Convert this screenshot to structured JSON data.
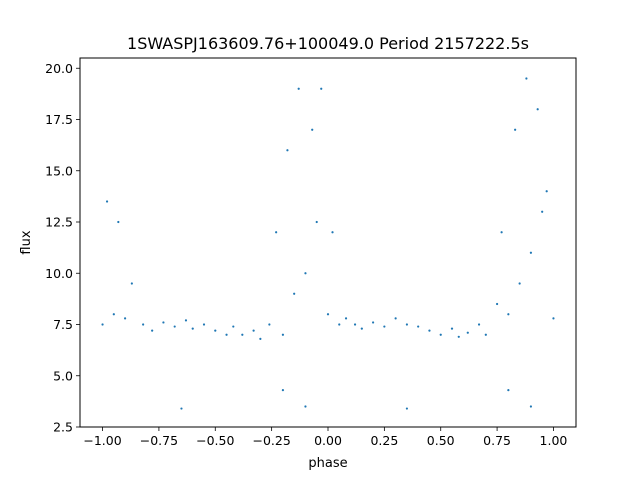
{
  "chart_data": {
    "type": "scatter",
    "title": "1SWASPJ163609.76+100049.0 Period 2157222.5s",
    "xlabel": "phase",
    "ylabel": "flux",
    "xlim": [
      -1.1,
      1.1
    ],
    "ylim": [
      2.5,
      20.5
    ],
    "xticks": [
      -1.0,
      -0.75,
      -0.5,
      -0.25,
      0.0,
      0.25,
      0.5,
      0.75,
      1.0
    ],
    "xtick_labels": [
      "−1.00",
      "−0.75",
      "−0.50",
      "−0.25",
      "0.00",
      "0.25",
      "0.50",
      "0.75",
      "1.00"
    ],
    "yticks": [
      2.5,
      5.0,
      7.5,
      10.0,
      12.5,
      15.0,
      17.5,
      20.0
    ],
    "ytick_labels": [
      "2.5",
      "5.0",
      "7.5",
      "10.0",
      "12.5",
      "15.0",
      "17.5",
      "20.0"
    ],
    "grid": false,
    "marker_color": "#1f77b4",
    "series": [
      {
        "x": [
          -1.0,
          -0.98,
          -0.95,
          -0.93,
          -0.9,
          -0.87,
          -0.82,
          -0.78,
          -0.73,
          -0.68,
          -0.63,
          -0.6,
          -0.55,
          -0.5,
          -0.45,
          -0.42,
          -0.38,
          -0.33,
          -0.3,
          -0.26,
          -0.23,
          -0.2,
          -0.18,
          -0.15,
          -0.13,
          -0.1,
          -0.07,
          -0.05,
          -0.03,
          0.0,
          0.02,
          0.05,
          0.08,
          0.12,
          0.15,
          0.2,
          0.25,
          0.3,
          0.35,
          0.4,
          0.45,
          0.5,
          0.55,
          0.58,
          0.62,
          0.67,
          0.7,
          0.75,
          0.77,
          0.8,
          0.83,
          0.85,
          0.88,
          0.9,
          0.93,
          0.95,
          0.97,
          1.0,
          -0.65,
          0.35,
          -0.1,
          0.9,
          -0.2,
          0.8
        ],
        "y": [
          7.5,
          13.5,
          8.0,
          12.5,
          7.8,
          9.5,
          7.5,
          7.2,
          7.6,
          7.4,
          7.7,
          7.3,
          7.5,
          7.2,
          7.0,
          7.4,
          7.0,
          7.2,
          6.8,
          7.5,
          12.0,
          7.0,
          16.0,
          9.0,
          19.0,
          10.0,
          17.0,
          12.5,
          19.0,
          8.0,
          12.0,
          7.5,
          7.8,
          7.5,
          7.3,
          7.6,
          7.4,
          7.8,
          7.5,
          7.4,
          7.2,
          7.0,
          7.3,
          6.9,
          7.1,
          7.5,
          7.0,
          8.5,
          12.0,
          8.0,
          17.0,
          9.5,
          19.5,
          11.0,
          18.0,
          13.0,
          14.0,
          7.8,
          3.4,
          3.4,
          3.5,
          3.5,
          4.3,
          4.3
        ]
      }
    ]
  }
}
